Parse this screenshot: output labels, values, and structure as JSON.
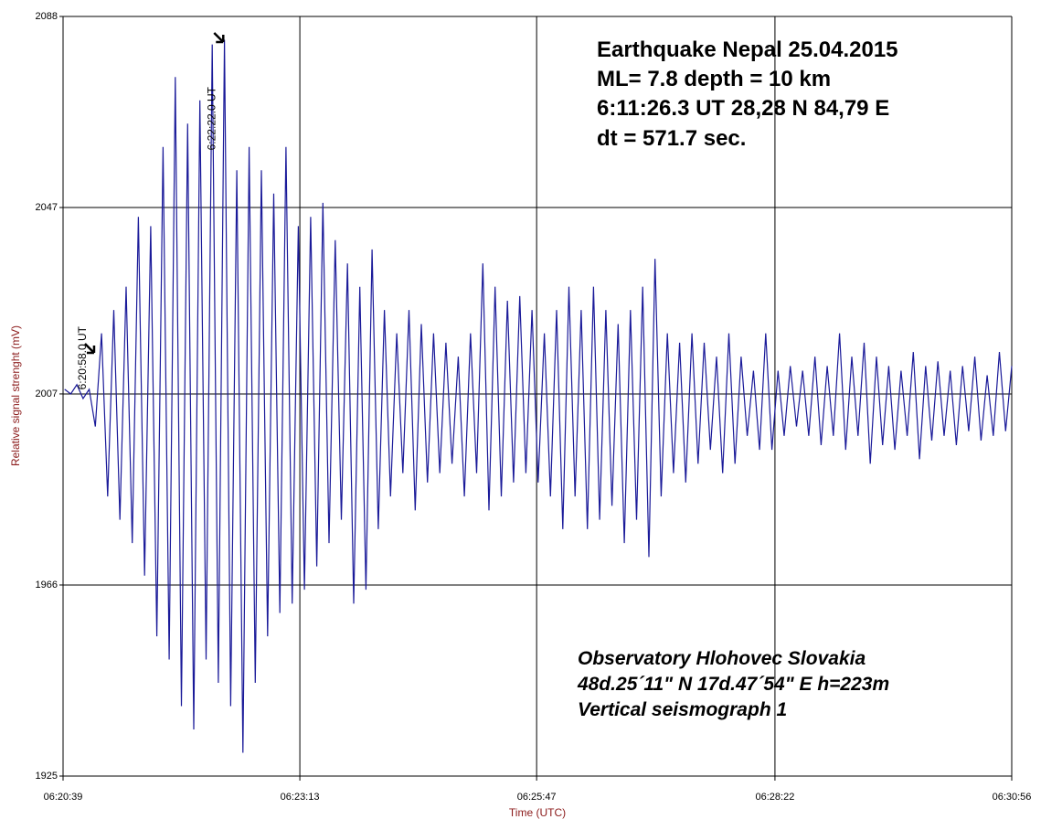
{
  "chart_data": {
    "type": "line",
    "title_lines": [
      "Earthquake Nepal 25.04.2015",
      "ML= 7.8  depth = 10 km",
      "6:11:26.3 UT   28,28 N    84,79 E",
      "dt = 571.7 sec."
    ],
    "notes": [
      "Observatory  Hlohovec   Slovakia",
      "48d.25´11\" N    17d.47´54\" E   h=223m",
      "Vertical seismograph 1"
    ],
    "y_label": "Relative signal strenght (mV)",
    "x_label": "Time (UTC)",
    "xlim": [
      22839,
      23456
    ],
    "xticks": [
      {
        "value": 22839,
        "label": "06:20:39"
      },
      {
        "value": 22993,
        "label": "06:23:13"
      },
      {
        "value": 23147,
        "label": "06:25:47"
      },
      {
        "value": 23302,
        "label": "06:28:22"
      },
      {
        "value": 23456,
        "label": "06:30:56"
      }
    ],
    "ylim": [
      1925,
      2088
    ],
    "yticks": [
      1925,
      1966,
      2007,
      2047,
      2088
    ],
    "grid": true,
    "color": "#1a1a99",
    "annotations": [
      {
        "text": "6:20:58.0 UT",
        "x": 22858
      },
      {
        "text": "6:22:22.0 UT",
        "x": 22942
      }
    ],
    "x": [
      22840,
      22844,
      22848,
      22852,
      22856,
      22860,
      22864,
      22868,
      22872,
      22876,
      22880,
      22884,
      22888,
      22892,
      22896,
      22900,
      22904,
      22908,
      22912,
      22916,
      22920,
      22924,
      22928,
      22932,
      22936,
      22940,
      22944,
      22948,
      22952,
      22956,
      22960,
      22964,
      22968,
      22972,
      22976,
      22980,
      22984,
      22988,
      22992,
      22996,
      23000,
      23004,
      23008,
      23012,
      23016,
      23020,
      23024,
      23028,
      23032,
      23036,
      23040,
      23044,
      23048,
      23052,
      23056,
      23060,
      23064,
      23068,
      23072,
      23076,
      23080,
      23084,
      23088,
      23092,
      23096,
      23100,
      23104,
      23108,
      23112,
      23116,
      23120,
      23124,
      23128,
      23132,
      23136,
      23140,
      23144,
      23148,
      23152,
      23156,
      23160,
      23164,
      23168,
      23172,
      23176,
      23180,
      23184,
      23188,
      23192,
      23196,
      23200,
      23204,
      23208,
      23212,
      23216,
      23220,
      23224,
      23228,
      23232,
      23236,
      23240,
      23244,
      23248,
      23252,
      23256,
      23260,
      23264,
      23268,
      23272,
      23276,
      23280,
      23284,
      23288,
      23292,
      23296,
      23300,
      23304,
      23308,
      23312,
      23316,
      23320,
      23324,
      23328,
      23332,
      23336,
      23340,
      23344,
      23348,
      23352,
      23356,
      23360,
      23364,
      23368,
      23372,
      23376,
      23380,
      23384,
      23388,
      23392,
      23396,
      23400,
      23404,
      23408,
      23412,
      23416,
      23420,
      23424,
      23428,
      23432,
      23436,
      23440,
      23444,
      23448,
      23452,
      23456
    ],
    "values": [
      2008,
      2007,
      2009,
      2006,
      2008,
      2000,
      2020,
      1985,
      2025,
      1980,
      2030,
      1975,
      2045,
      1968,
      2043,
      1955,
      2060,
      1950,
      2075,
      1940,
      2065,
      1935,
      2070,
      1950,
      2082,
      1945,
      2083,
      1940,
      2055,
      1930,
      2060,
      1945,
      2055,
      1955,
      2050,
      1960,
      2060,
      1962,
      2043,
      1965,
      2045,
      1970,
      2048,
      1975,
      2040,
      1980,
      2035,
      1962,
      2030,
      1965,
      2038,
      1978,
      2025,
      1985,
      2020,
      1990,
      2025,
      1982,
      2022,
      1988,
      2020,
      1990,
      2018,
      1992,
      2015,
      1985,
      2020,
      1990,
      2035,
      1982,
      2030,
      1985,
      2027,
      1988,
      2028,
      1990,
      2025,
      1988,
      2020,
      1985,
      2025,
      1978,
      2030,
      1985,
      2025,
      1978,
      2030,
      1980,
      2025,
      1983,
      2022,
      1975,
      2025,
      1980,
      2030,
      1972,
      2036,
      1985,
      2020,
      1990,
      2018,
      1988,
      2020,
      1992,
      2018,
      1995,
      2015,
      1990,
      2020,
      1992,
      2015,
      1998,
      2012,
      1995,
      2020,
      1995,
      2012,
      1998,
      2013,
      2000,
      2012,
      1998,
      2015,
      1996,
      2013,
      1998,
      2020,
      1995,
      2015,
      1998,
      2018,
      1992,
      2015,
      1996,
      2013,
      1995,
      2012,
      1998,
      2016,
      1993,
      2013,
      1997,
      2014,
      1998,
      2012,
      1996,
      2013,
      1999,
      2015,
      1997,
      2011,
      1998,
      2016,
      1999,
      2013
    ]
  }
}
